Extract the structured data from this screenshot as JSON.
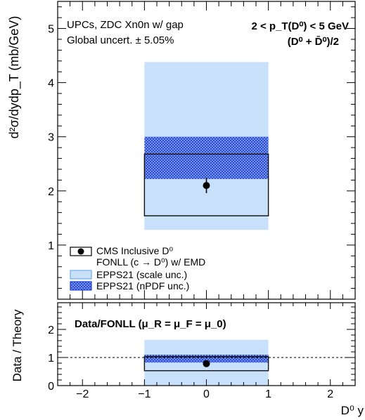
{
  "chart_data": [
    {
      "panel": "top",
      "type": "bar",
      "ylabel": "d²σ/dydp_T (mb/GeV)",
      "ylim": [
        0.0,
        5.5
      ],
      "xlim": [
        -2.4,
        2.4
      ],
      "yticks": [
        1,
        2,
        3,
        4,
        5
      ],
      "annotations": {
        "left_line1": "UPCs, ZDC Xn0n w/ gap",
        "left_line2": "Global uncert. ± 5.05%",
        "right_line1": "2 < p_T(D⁰) < 5 GeV",
        "right_line2": "(D⁰ + D̄⁰)/2"
      },
      "data": {
        "name": "CMS Inclusive D⁰",
        "x": 0.0,
        "y": 2.1,
        "yerr": 0.14
      },
      "fonll": {
        "name": "FONLL (c → D⁰) w/ EMD",
        "x_range": [
          -1,
          1
        ],
        "y_low": 1.54,
        "y_high": 2.68
      },
      "epps21_scale": {
        "name": "EPPS21 (scale unc.)",
        "x_range": [
          -1,
          1
        ],
        "y_low": 1.28,
        "y_high": 4.38
      },
      "epps21_npdf": {
        "name": "EPPS21 (nPDF unc.)",
        "x_range": [
          -1,
          1
        ],
        "y_low": 2.22,
        "y_high": 3.0
      },
      "legend_position": "bottom-left"
    },
    {
      "panel": "ratio",
      "type": "bar",
      "ylabel": "Data / Theory",
      "xlabel": "D⁰ y",
      "title": "Data/FONLL (μ_R = μ_F = μ_0)",
      "ylim": [
        0,
        2.95
      ],
      "xlim": [
        -2.4,
        2.4
      ],
      "xticks": [
        -2,
        -1,
        0,
        1,
        2
      ],
      "yticks": [
        0,
        1,
        2
      ],
      "reference_line": 1.0,
      "data": {
        "x": 0.0,
        "y": 0.78,
        "yerr": 0.06
      },
      "fonll": {
        "x_range": [
          -1,
          1
        ],
        "y_low": 0.53,
        "y_high": 1.03
      },
      "epps21_scale": {
        "x_range": [
          -1,
          1
        ],
        "y_low": 0.0,
        "y_high": 1.63
      },
      "epps21_npdf": {
        "x_range": [
          -1,
          1
        ],
        "y_low": 0.82,
        "y_high": 1.1
      }
    }
  ]
}
